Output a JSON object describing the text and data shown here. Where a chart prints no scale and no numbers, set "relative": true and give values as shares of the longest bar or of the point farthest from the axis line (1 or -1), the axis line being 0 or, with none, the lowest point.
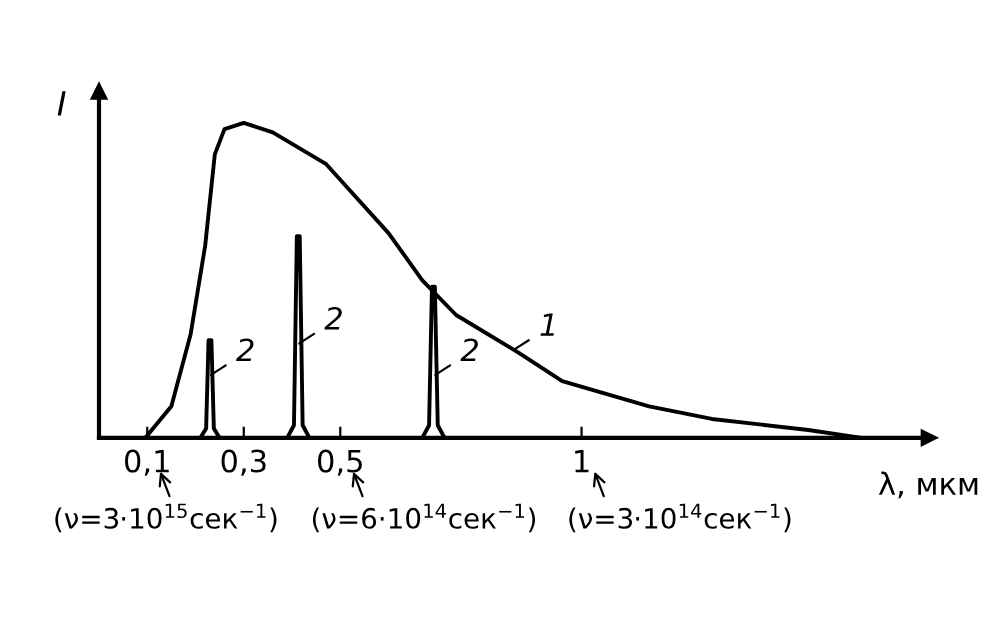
{
  "chart_data": {
    "type": "line",
    "relative": true,
    "xlabel": "λ, мкм",
    "ylabel": "I",
    "xlim": [
      0,
      1.72
    ],
    "xticks": [
      {
        "value": 0.1,
        "label": "0,1"
      },
      {
        "value": 0.3,
        "label": "0,3"
      },
      {
        "value": 0.5,
        "label": "0,5"
      },
      {
        "value": 1,
        "label": "1"
      }
    ],
    "tick_labels": "x",
    "grid": false,
    "marker": "none",
    "line_style": "solid",
    "series": [
      {
        "color": "#000000",
        "x": [
          0.096,
          0.15,
          0.19,
          0.22,
          0.24,
          0.26,
          0.3,
          0.36,
          0.47,
          0.6,
          0.67,
          0.74,
          0.87,
          0.96,
          1.14,
          1.27,
          1.47,
          1.58
        ],
        "values": [
          0,
          0.1,
          0.33,
          0.61,
          0.9,
          0.98,
          1,
          0.97,
          0.87,
          0.65,
          0.5,
          0.39,
          0.27,
          0.18,
          0.1,
          0.06,
          0.025,
          0
        ]
      },
      {
        "color": "#000000",
        "x": [
          0.21,
          0.222,
          0.227,
          0.233,
          0.238,
          0.25
        ],
        "values": [
          0,
          0.03,
          0.31,
          0.31,
          0.03,
          0
        ]
      },
      {
        "color": "#000000",
        "x": [
          0.39,
          0.404,
          0.41,
          0.416,
          0.422,
          0.436
        ],
        "values": [
          0,
          0.04,
          0.64,
          0.64,
          0.04,
          0
        ]
      },
      {
        "color": "#000000",
        "x": [
          0.67,
          0.684,
          0.69,
          0.696,
          0.702,
          0.716
        ],
        "values": [
          0,
          0.04,
          0.48,
          0.48,
          0.04,
          0
        ]
      }
    ],
    "annotations": [
      {
        "text": "1",
        "x": 0.86,
        "y": 0.28
      },
      {
        "text": "2",
        "x": 0.232,
        "y": 0.2
      },
      {
        "text": "2",
        "x": 0.415,
        "y": 0.3
      },
      {
        "text": "2",
        "x": 0.697,
        "y": 0.2
      },
      "(ν=3·10$^{15}$сек$^{−1}$)",
      "(ν=6·10$^{14}$сек$^{−1}$)",
      "(ν=3·10$^{14}$сек$^{−1}$)"
    ]
  }
}
